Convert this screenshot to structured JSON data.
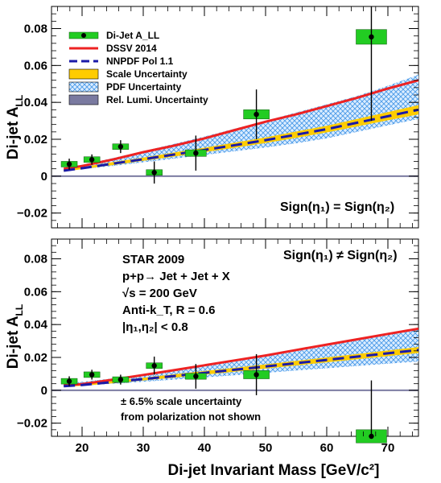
{
  "chart_data": [
    {
      "panel": "top",
      "type": "scatter",
      "ylabel": "Di-jet A_LL",
      "ylim": [
        -0.028,
        0.092
      ],
      "xlim": [
        15,
        75
      ],
      "yticks": [
        -0.02,
        0,
        0.02,
        0.04,
        0.06,
        0.08
      ],
      "ytick_labels": [
        "−0.02",
        "0",
        "0.02",
        "0.04",
        "0.06",
        "0.08"
      ],
      "sign_label": "Sign(η₁) = Sign(η₂)",
      "legend": [
        {
          "label": "Di-Jet A_LL",
          "style": "point-box"
        },
        {
          "label": "DSSV 2014",
          "style": "red-line"
        },
        {
          "label": "NNPDF Pol 1.1",
          "style": "blue-dashed"
        },
        {
          "label": "Scale Uncertainty",
          "style": "yellow-band"
        },
        {
          "label": "PDF Uncertainty",
          "style": "hatched-band"
        },
        {
          "label": "Rel. Lumi. Uncertainty",
          "style": "gray-band"
        }
      ],
      "points": [
        {
          "x": 17.9,
          "y": 0.0065,
          "err": 0.003,
          "sys": 0.0012
        },
        {
          "x": 21.6,
          "y": 0.009,
          "err": 0.0028,
          "sys": 0.0012
        },
        {
          "x": 26.3,
          "y": 0.016,
          "err": 0.0035,
          "sys": 0.0015
        },
        {
          "x": 31.8,
          "y": 0.002,
          "err": 0.006,
          "sys": 0.0015
        },
        {
          "x": 38.6,
          "y": 0.0125,
          "err": 0.0095,
          "sys": 0.0018
        },
        {
          "x": 48.5,
          "y": 0.0335,
          "err": 0.0135,
          "sys": 0.0025
        },
        {
          "x": 67.3,
          "y": 0.0755,
          "err": 0.0455,
          "sys": 0.004
        }
      ],
      "curves": {
        "x": [
          17,
          20,
          25,
          30,
          35,
          40,
          45,
          50,
          55,
          60,
          65,
          70,
          75
        ],
        "dssv": [
          0.004,
          0.0055,
          0.009,
          0.013,
          0.0165,
          0.0205,
          0.025,
          0.0295,
          0.0335,
          0.038,
          0.0425,
          0.0475,
          0.052
        ],
        "nnpdf": [
          0.003,
          0.0043,
          0.0068,
          0.0092,
          0.0117,
          0.0142,
          0.0168,
          0.0195,
          0.0225,
          0.0255,
          0.029,
          0.0325,
          0.036
        ],
        "pdf_low": [
          0.0028,
          0.0038,
          0.0055,
          0.0075,
          0.0095,
          0.0115,
          0.0135,
          0.0155,
          0.0178,
          0.0205,
          0.024,
          0.0275,
          0.031
        ],
        "pdf_high": [
          0.004,
          0.0062,
          0.0098,
          0.0135,
          0.0175,
          0.0215,
          0.0258,
          0.03,
          0.0345,
          0.039,
          0.0435,
          0.049,
          0.055
        ],
        "scale_low": [
          0.0025,
          0.0038,
          0.006,
          0.0083,
          0.0106,
          0.013,
          0.0154,
          0.018,
          0.0208,
          0.0237,
          0.027,
          0.0303,
          0.0335
        ],
        "scale_high": [
          0.0035,
          0.0048,
          0.0076,
          0.0101,
          0.0128,
          0.0154,
          0.0182,
          0.021,
          0.0242,
          0.0273,
          0.031,
          0.0347,
          0.0385
        ]
      }
    },
    {
      "panel": "bottom",
      "type": "scatter",
      "ylabel": "Di-jet A_LL",
      "xlabel": "Di-jet Invariant Mass [GeV/c²]",
      "ylim": [
        -0.028,
        0.092
      ],
      "xlim": [
        15,
        75
      ],
      "yticks": [
        -0.02,
        0,
        0.02,
        0.04,
        0.06,
        0.08
      ],
      "ytick_labels": [
        "−0.02",
        "0",
        "0.02",
        "0.04",
        "0.06",
        "0.08"
      ],
      "xticks": [
        20,
        30,
        40,
        50,
        60,
        70
      ],
      "xtick_labels": [
        "20",
        "30",
        "40",
        "50",
        "60",
        "70"
      ],
      "sign_label": "Sign(η₁) ≠ Sign(η₂)",
      "annotation_lines": [
        "STAR 2009",
        "p+p→ Jet + Jet + X",
        "√s = 200 GeV",
        "Anti-k_T, R = 0.6",
        "|η₁,η₂| < 0.8"
      ],
      "note_lines": [
        "± 6.5% scale uncertainty",
        "from polarization not shown"
      ],
      "points": [
        {
          "x": 17.9,
          "y": 0.0055,
          "err": 0.003,
          "sys": 0.0012
        },
        {
          "x": 21.6,
          "y": 0.0095,
          "err": 0.003,
          "sys": 0.0012
        },
        {
          "x": 26.3,
          "y": 0.0065,
          "err": 0.003,
          "sys": 0.0015
        },
        {
          "x": 31.8,
          "y": 0.015,
          "err": 0.0055,
          "sys": 0.0015
        },
        {
          "x": 38.6,
          "y": 0.0085,
          "err": 0.0075,
          "sys": 0.0018
        },
        {
          "x": 48.5,
          "y": 0.0095,
          "err": 0.0125,
          "sys": 0.0025
        },
        {
          "x": 67.3,
          "y": -0.028,
          "err": 0.034,
          "sys": 0.004
        }
      ],
      "curves": {
        "x": [
          17,
          20,
          25,
          30,
          35,
          40,
          45,
          50,
          55,
          60,
          65,
          70,
          75
        ],
        "dssv": [
          0.003,
          0.0038,
          0.0065,
          0.0093,
          0.0122,
          0.0152,
          0.0182,
          0.0212,
          0.0245,
          0.0278,
          0.031,
          0.0343,
          0.0375
        ],
        "nnpdf": [
          0.0025,
          0.0032,
          0.005,
          0.0068,
          0.0087,
          0.0106,
          0.0125,
          0.0145,
          0.0165,
          0.0185,
          0.0205,
          0.0225,
          0.0245
        ],
        "pdf_low": [
          0.0022,
          0.0028,
          0.004,
          0.0052,
          0.0065,
          0.0078,
          0.0092,
          0.0106,
          0.012,
          0.0134,
          0.0148,
          0.0162,
          0.0175
        ],
        "pdf_high": [
          0.0045,
          0.0052,
          0.0072,
          0.0095,
          0.012,
          0.0147,
          0.0175,
          0.0205,
          0.0237,
          0.027,
          0.0305,
          0.034,
          0.0375
        ],
        "scale_low": [
          0.0021,
          0.0027,
          0.0043,
          0.006,
          0.0077,
          0.0095,
          0.0113,
          0.0132,
          0.0151,
          0.017,
          0.0189,
          0.0208,
          0.0227
        ],
        "scale_high": [
          0.0029,
          0.0037,
          0.0057,
          0.0076,
          0.0097,
          0.0117,
          0.0137,
          0.0158,
          0.0179,
          0.02,
          0.0221,
          0.0242,
          0.0263
        ]
      }
    }
  ],
  "colors": {
    "dssv": "#ee2222",
    "nnpdf": "#1a1aa8",
    "scale_band": "#ffcc00",
    "pdf_hatch": "#4499ee",
    "pdf_bg": "#d9ecff",
    "lumi_band": "#7a7aa0",
    "sys_box": "#22cc22"
  }
}
